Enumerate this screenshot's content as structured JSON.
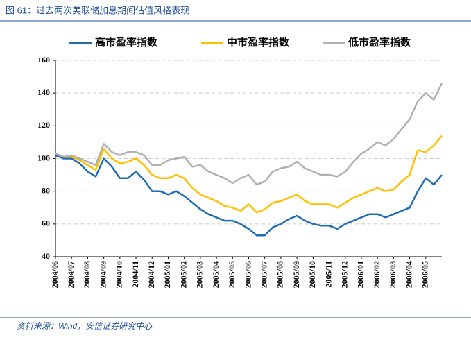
{
  "header": {
    "title": "图 61：过去两次美联储加息期间估值风格表现"
  },
  "chart_data": {
    "type": "line",
    "categories": [
      "2004/06",
      null,
      "2004/07",
      null,
      "2004/08",
      null,
      "2004/09",
      null,
      "2004/10",
      null,
      "2004/11",
      null,
      "2004/12",
      null,
      "2005/01",
      null,
      "2005/02",
      null,
      "2005/03",
      null,
      "2005/04",
      null,
      "2005/05",
      null,
      "2005/06",
      null,
      "2005/07",
      null,
      "2005/08",
      null,
      "2005/09",
      null,
      "2005/10",
      null,
      "2005/11",
      null,
      "2005/12",
      null,
      "2006/01",
      null,
      "2006/02",
      null,
      "2006/03",
      null,
      "2006/04",
      null,
      "2006/05",
      null,
      null
    ],
    "series": [
      {
        "name": "高市盈率指数",
        "color": "#1f6db5",
        "values": [
          102,
          100,
          100,
          97,
          92,
          89,
          100,
          95,
          88,
          88,
          92,
          87,
          80,
          80,
          78,
          80,
          77,
          73,
          69,
          66,
          64,
          62,
          62,
          60,
          57,
          53,
          53,
          58,
          60,
          63,
          65,
          62,
          60,
          59,
          59,
          57,
          60,
          62,
          64,
          66,
          66,
          64,
          66,
          68,
          70,
          80,
          88,
          84,
          90
        ]
      },
      {
        "name": "中市盈率指数",
        "color": "#ffc000",
        "values": [
          103,
          101,
          101,
          99,
          96,
          93,
          106,
          100,
          97,
          98,
          100,
          96,
          90,
          88,
          88,
          90,
          88,
          82,
          78,
          76,
          74,
          71,
          70,
          68,
          72,
          67,
          69,
          73,
          74,
          76,
          78,
          74,
          72,
          72,
          72,
          70,
          73,
          76,
          78,
          80,
          82,
          80,
          81,
          86,
          90,
          105,
          104,
          108,
          114
        ]
      },
      {
        "name": "低市盈率指数",
        "color": "#b0b0b0",
        "values": [
          103,
          101,
          102,
          100,
          98,
          96,
          109,
          104,
          102,
          104,
          104,
          102,
          96,
          96,
          99,
          100,
          101,
          95,
          96,
          92,
          90,
          88,
          85,
          88,
          90,
          84,
          86,
          92,
          94,
          95,
          98,
          94,
          92,
          90,
          90,
          89,
          92,
          98,
          103,
          106,
          110,
          108,
          112,
          118,
          124,
          135,
          140,
          136,
          146
        ]
      }
    ],
    "ylim": [
      40,
      160
    ],
    "yticks": [
      40,
      60,
      80,
      100,
      120,
      140,
      160
    ],
    "grid": true,
    "legend": "top"
  },
  "footer": {
    "source": "资料来源：Wind，安信证券研究中心"
  }
}
